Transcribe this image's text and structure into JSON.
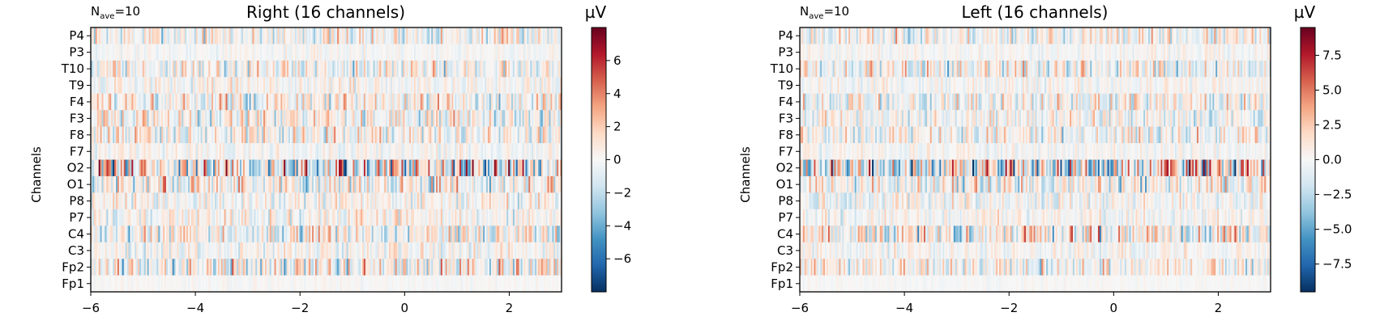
{
  "figure": {
    "background": "#ffffff"
  },
  "chart_data": [
    {
      "type": "heatmap",
      "nave": "10",
      "title": "Right (16 channels)",
      "xlabel": "",
      "ylabel": "Channels",
      "xlim": [
        -6,
        3
      ],
      "xticks": [
        -6,
        -4,
        -2,
        0,
        2
      ],
      "xtick_labels": [
        "−6",
        "−4",
        "−2",
        "0",
        "2"
      ],
      "channels": [
        "P4",
        "P3",
        "T10",
        "T9",
        "F4",
        "F3",
        "F8",
        "F7",
        "O2",
        "O1",
        "P8",
        "P7",
        "C4",
        "C3",
        "Fp2",
        "Fp1"
      ],
      "channel_amplitude": [
        2.0,
        0.6,
        2.0,
        1.2,
        2.2,
        2.0,
        2.0,
        0.9,
        4.2,
        2.5,
        1.5,
        1.4,
        2.4,
        1.2,
        2.6,
        0.3
      ],
      "colorbar": {
        "label": "µV",
        "vmin": -8,
        "vmax": 8,
        "ticks": [
          6,
          4,
          2,
          0,
          -2,
          -4,
          -6
        ],
        "tick_labels": [
          "6",
          "4",
          "2",
          "0",
          "−2",
          "−4",
          "−6"
        ],
        "colormap": "RdBu_r"
      },
      "grid": false,
      "seed": 7
    },
    {
      "type": "heatmap",
      "nave": "10",
      "title": "Left (16 channels)",
      "xlabel": "",
      "ylabel": "Channels",
      "xlim": [
        -6,
        3
      ],
      "xticks": [
        -6,
        -4,
        -2,
        0,
        2
      ],
      "xtick_labels": [
        "−6",
        "−4",
        "−2",
        "0",
        "2"
      ],
      "channels": [
        "P4",
        "P3",
        "T10",
        "T9",
        "F4",
        "F3",
        "F8",
        "F7",
        "O2",
        "O1",
        "P8",
        "P7",
        "C4",
        "C3",
        "Fp2",
        "Fp1"
      ],
      "channel_amplitude": [
        2.2,
        0.8,
        2.6,
        1.0,
        2.4,
        2.0,
        2.2,
        1.0,
        4.8,
        2.6,
        1.6,
        1.4,
        3.2,
        1.2,
        2.4,
        0.3
      ],
      "colorbar": {
        "label": "µV",
        "vmin": -9.5,
        "vmax": 9.5,
        "ticks": [
          7.5,
          5.0,
          2.5,
          0.0,
          -2.5,
          -5.0,
          -7.5
        ],
        "tick_labels": [
          "7.5",
          "5.0",
          "2.5",
          "0.0",
          "−2.5",
          "−5.0",
          "−7.5"
        ],
        "colormap": "RdBu_r"
      },
      "grid": false,
      "seed": 23
    }
  ]
}
